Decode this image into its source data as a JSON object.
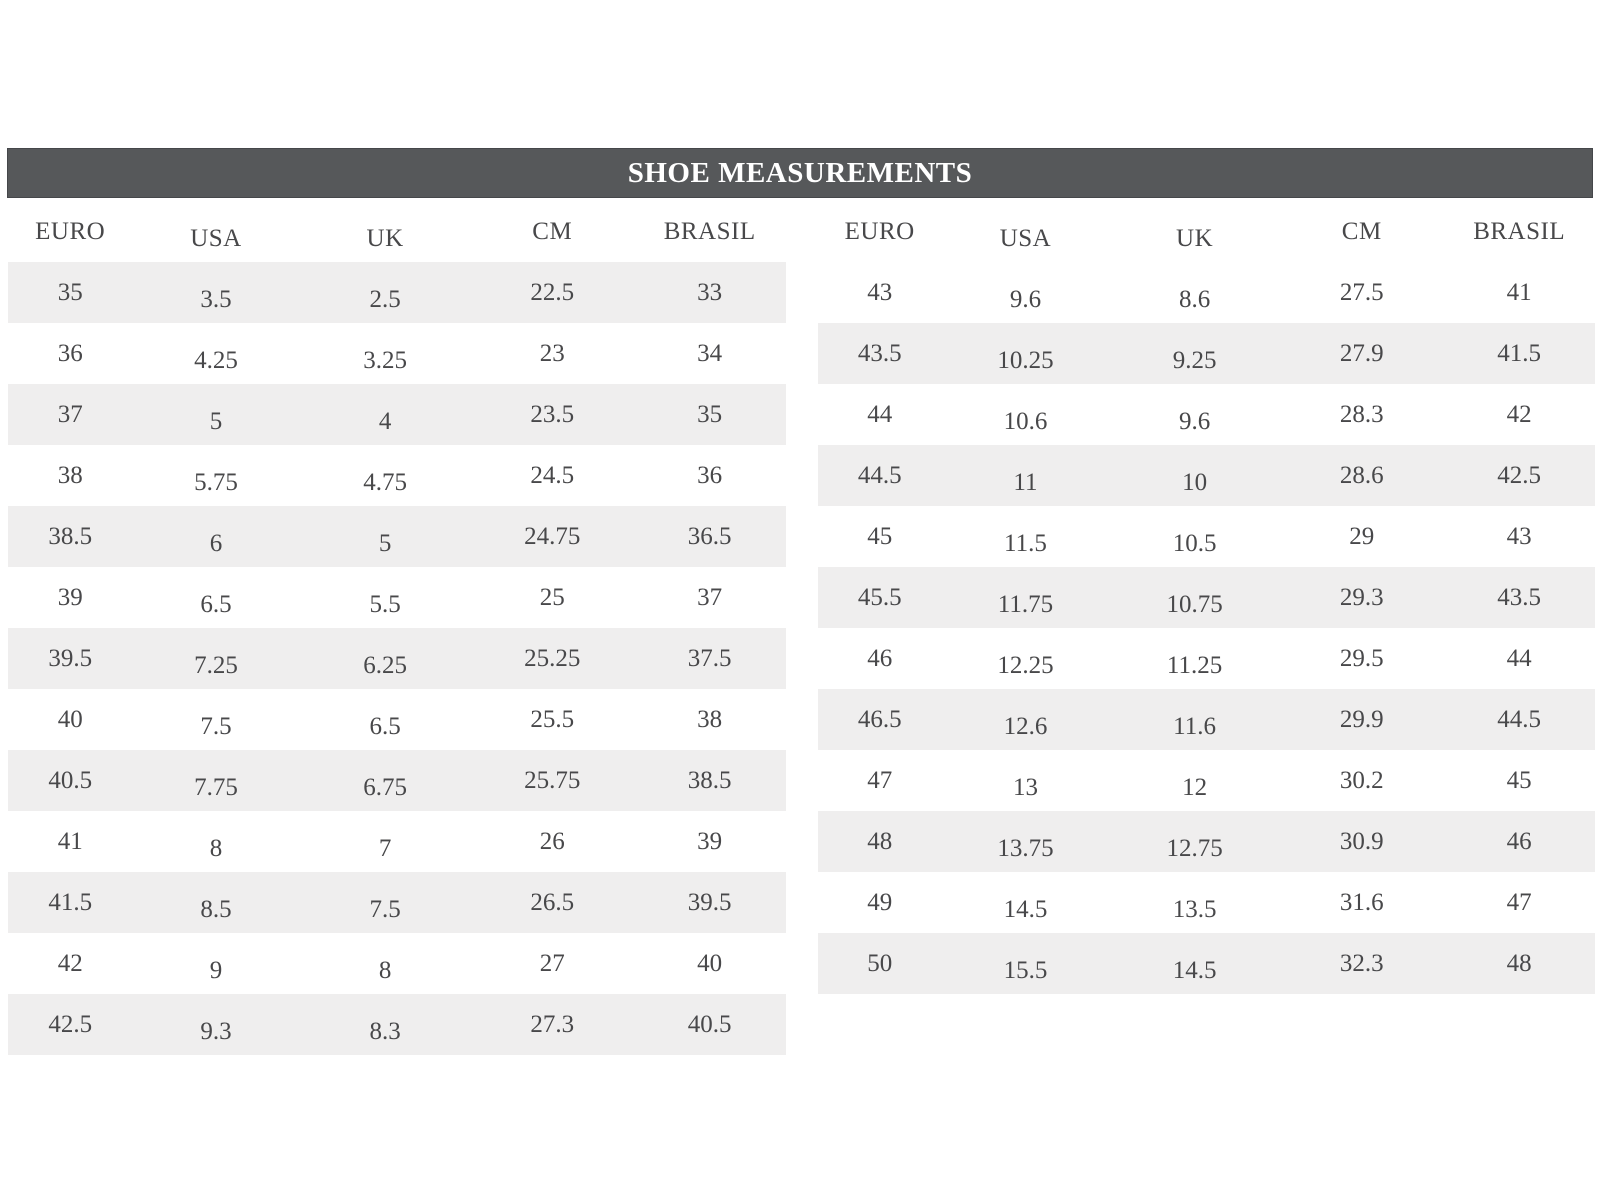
{
  "title": "SHOE MEASUREMENTS",
  "chart_data": {
    "type": "table",
    "title": "SHOE MEASUREMENTS",
    "columns": [
      "EURO",
      "USA",
      "UK",
      "CM",
      "BRASIL"
    ],
    "left_rows": [
      [
        "35",
        "3.5",
        "2.5",
        "22.5",
        "33"
      ],
      [
        "36",
        "4.25",
        "3.25",
        "23",
        "34"
      ],
      [
        "37",
        "5",
        "4",
        "23.5",
        "35"
      ],
      [
        "38",
        "5.75",
        "4.75",
        "24.5",
        "36"
      ],
      [
        "38.5",
        "6",
        "5",
        "24.75",
        "36.5"
      ],
      [
        "39",
        "6.5",
        "5.5",
        "25",
        "37"
      ],
      [
        "39.5",
        "7.25",
        "6.25",
        "25.25",
        "37.5"
      ],
      [
        "40",
        "7.5",
        "6.5",
        "25.5",
        "38"
      ],
      [
        "40.5",
        "7.75",
        "6.75",
        "25.75",
        "38.5"
      ],
      [
        "41",
        "8",
        "7",
        "26",
        "39"
      ],
      [
        "41.5",
        "8.5",
        "7.5",
        "26.5",
        "39.5"
      ],
      [
        "42",
        "9",
        "8",
        "27",
        "40"
      ],
      [
        "42.5",
        "9.3",
        "8.3",
        "27.3",
        "40.5"
      ]
    ],
    "right_rows": [
      [
        "43",
        "9.6",
        "8.6",
        "27.5",
        "41"
      ],
      [
        "43.5",
        "10.25",
        "9.25",
        "27.9",
        "41.5"
      ],
      [
        "44",
        "10.6",
        "9.6",
        "28.3",
        "42"
      ],
      [
        "44.5",
        "11",
        "10",
        "28.6",
        "42.5"
      ],
      [
        "45",
        "11.5",
        "10.5",
        "29",
        "43"
      ],
      [
        "45.5",
        "11.75",
        "10.75",
        "29.3",
        "43.5"
      ],
      [
        "46",
        "12.25",
        "11.25",
        "29.5",
        "44"
      ],
      [
        "46.5",
        "12.6",
        "11.6",
        "29.9",
        "44.5"
      ],
      [
        "47",
        "13",
        "12",
        "30.2",
        "45"
      ],
      [
        "48",
        "13.75",
        "12.75",
        "30.9",
        "46"
      ],
      [
        "49",
        "14.5",
        "13.5",
        "31.6",
        "47"
      ],
      [
        "50",
        "15.5",
        "14.5",
        "32.3",
        "48"
      ]
    ]
  },
  "colors": {
    "page_bg": "#ffffff",
    "header_bar_bg": "#56585a",
    "header_bar_border": "#45474a",
    "title_color": "#ffffff",
    "stripe_bg": "#efeeee",
    "text_color": "#48484a"
  }
}
